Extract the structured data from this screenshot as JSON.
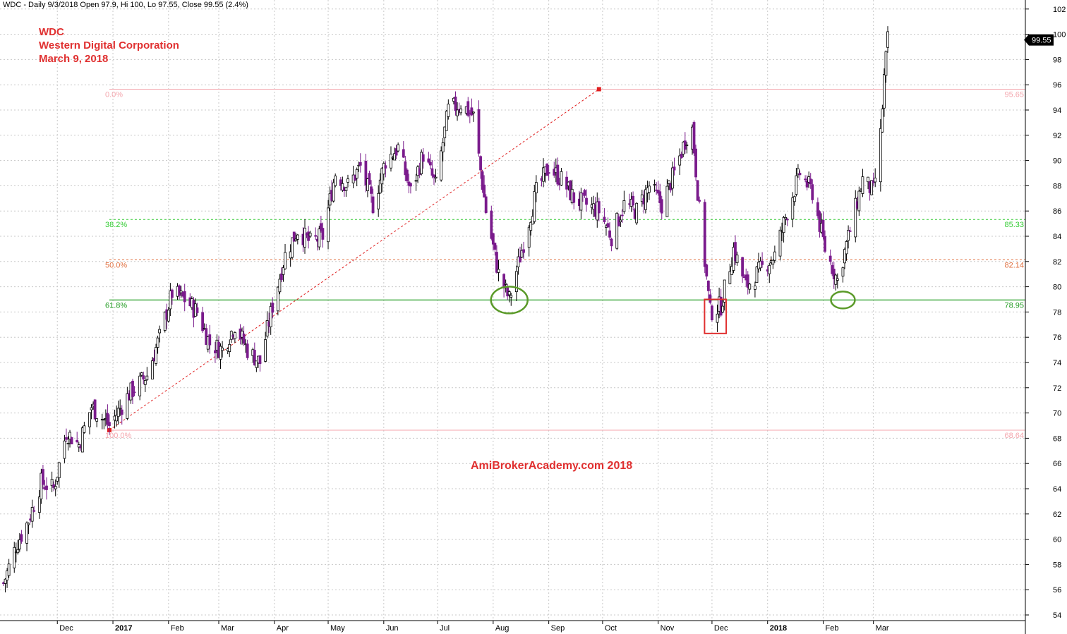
{
  "header": {
    "info": "WDC - Daily 9/3/2018 Open 97.9, Hi 100, Lo 97.55, Close 99.55 (2.4%)"
  },
  "overlay": {
    "ticker": "WDC",
    "company": "Western Digital Corporation",
    "date": "March 9, 2018",
    "watermark": "AmiBrokerAcademy.com  2018"
  },
  "colors": {
    "up_candle": "#000000",
    "down_candle": "#7a1b8c",
    "fib_0": "#f4a6ad",
    "fib_382": "#33cc33",
    "fib_50": "#e07040",
    "fib_618": "#1f9a1f",
    "trendline": "#e02020",
    "circle": "#5a9a28",
    "box": "#e03030",
    "label_text": "#e03030"
  },
  "chart_data": {
    "type": "candlestick",
    "y_axis_position": "right",
    "ylim": [
      53,
      103
    ],
    "yticks": [
      54,
      56,
      58,
      60,
      62,
      64,
      66,
      68,
      70,
      72,
      74,
      76,
      78,
      80,
      82,
      84,
      86,
      88,
      90,
      92,
      94,
      96,
      98,
      100,
      102
    ],
    "grid": true,
    "x_tick_labels": [
      {
        "label": "Dec",
        "bold": false
      },
      {
        "label": "2017",
        "bold": true
      },
      {
        "label": "Feb",
        "bold": false
      },
      {
        "label": "Mar",
        "bold": false
      },
      {
        "label": "Apr",
        "bold": false
      },
      {
        "label": "May",
        "bold": false
      },
      {
        "label": "Jun",
        "bold": false
      },
      {
        "label": "Jul",
        "bold": false
      },
      {
        "label": "Aug",
        "bold": false
      },
      {
        "label": "Sep",
        "bold": false
      },
      {
        "label": "Oct",
        "bold": false
      },
      {
        "label": "Nov",
        "bold": false
      },
      {
        "label": "Dec",
        "bold": false
      },
      {
        "label": "2018",
        "bold": true
      },
      {
        "label": "Feb",
        "bold": false
      },
      {
        "label": "Mar",
        "bold": false
      }
    ],
    "last_price_label": "99.55",
    "last_price": 99.55,
    "fibonacci": [
      {
        "level": 95.65,
        "pct": "0.0%",
        "value": "95.65",
        "style": "solid",
        "color_key": "fib_0"
      },
      {
        "level": 85.33,
        "pct": "38.2%",
        "value": "85.33",
        "style": "dashed",
        "color_key": "fib_382"
      },
      {
        "level": 82.14,
        "pct": "50.0%",
        "value": "82.14",
        "style": "dashed",
        "color_key": "fib_50"
      },
      {
        "level": 78.95,
        "pct": "61.8%",
        "value": "78.95",
        "style": "solid",
        "color_key": "fib_618"
      },
      {
        "level": 68.64,
        "pct": "100.0%",
        "value": "68.64",
        "style": "solid",
        "color_key": "fib_0"
      }
    ],
    "trendline": {
      "from": {
        "date": "2016-12-30",
        "price": 68.64
      },
      "to": {
        "date": "2017-09-29",
        "price": 95.65
      }
    },
    "price_path": [
      {
        "date": "2016-11-01",
        "price": 56.5
      },
      {
        "date": "2016-11-08",
        "price": 59.5
      },
      {
        "date": "2016-11-15",
        "price": 61.5
      },
      {
        "date": "2016-11-22",
        "price": 64.5
      },
      {
        "date": "2016-11-29",
        "price": 64.0
      },
      {
        "date": "2016-12-06",
        "price": 68.5
      },
      {
        "date": "2016-12-13",
        "price": 67.5
      },
      {
        "date": "2016-12-20",
        "price": 70.5
      },
      {
        "date": "2016-12-30",
        "price": 69.0
      },
      {
        "date": "2017-01-10",
        "price": 71.5
      },
      {
        "date": "2017-01-20",
        "price": 73.0
      },
      {
        "date": "2017-01-27",
        "price": 76.0
      },
      {
        "date": "2017-02-03",
        "price": 79.5
      },
      {
        "date": "2017-02-10",
        "price": 79.0
      },
      {
        "date": "2017-02-17",
        "price": 78.0
      },
      {
        "date": "2017-02-24",
        "price": 75.5
      },
      {
        "date": "2017-03-03",
        "price": 75.0
      },
      {
        "date": "2017-03-10",
        "price": 77.0
      },
      {
        "date": "2017-03-17",
        "price": 75.0
      },
      {
        "date": "2017-03-24",
        "price": 74.0
      },
      {
        "date": "2017-03-31",
        "price": 78.5
      },
      {
        "date": "2017-04-07",
        "price": 82.5
      },
      {
        "date": "2017-04-14",
        "price": 84.5
      },
      {
        "date": "2017-04-21",
        "price": 83.5
      },
      {
        "date": "2017-04-28",
        "price": 84.0
      },
      {
        "date": "2017-05-05",
        "price": 89.0
      },
      {
        "date": "2017-05-12",
        "price": 88.0
      },
      {
        "date": "2017-05-19",
        "price": 89.5
      },
      {
        "date": "2017-05-26",
        "price": 86.5
      },
      {
        "date": "2017-06-02",
        "price": 90.0
      },
      {
        "date": "2017-06-09",
        "price": 91.0
      },
      {
        "date": "2017-06-16",
        "price": 87.5
      },
      {
        "date": "2017-06-23",
        "price": 90.5
      },
      {
        "date": "2017-06-30",
        "price": 88.0
      },
      {
        "date": "2017-07-07",
        "price": 94.0
      },
      {
        "date": "2017-07-14",
        "price": 94.5
      },
      {
        "date": "2017-07-21",
        "price": 93.5
      },
      {
        "date": "2017-07-28",
        "price": 86.0
      },
      {
        "date": "2017-08-04",
        "price": 81.0
      },
      {
        "date": "2017-08-10",
        "price": 79.0
      },
      {
        "date": "2017-08-18",
        "price": 83.5
      },
      {
        "date": "2017-08-25",
        "price": 87.5
      },
      {
        "date": "2017-09-01",
        "price": 89.5
      },
      {
        "date": "2017-09-08",
        "price": 88.5
      },
      {
        "date": "2017-09-15",
        "price": 87.0
      },
      {
        "date": "2017-09-22",
        "price": 86.5
      },
      {
        "date": "2017-09-29",
        "price": 86.0
      },
      {
        "date": "2017-10-06",
        "price": 84.0
      },
      {
        "date": "2017-10-13",
        "price": 86.5
      },
      {
        "date": "2017-10-20",
        "price": 86.0
      },
      {
        "date": "2017-10-27",
        "price": 88.0
      },
      {
        "date": "2017-11-03",
        "price": 86.5
      },
      {
        "date": "2017-11-10",
        "price": 89.0
      },
      {
        "date": "2017-11-17",
        "price": 92.0
      },
      {
        "date": "2017-11-20",
        "price": 92.5
      },
      {
        "date": "2017-11-24",
        "price": 86.0
      },
      {
        "date": "2017-11-30",
        "price": 78.0
      },
      {
        "date": "2017-12-06",
        "price": 78.5
      },
      {
        "date": "2017-12-13",
        "price": 83.0
      },
      {
        "date": "2017-12-20",
        "price": 80.0
      },
      {
        "date": "2017-12-29",
        "price": 81.5
      },
      {
        "date": "2018-01-05",
        "price": 82.5
      },
      {
        "date": "2018-01-12",
        "price": 86.0
      },
      {
        "date": "2018-01-19",
        "price": 89.0
      },
      {
        "date": "2018-01-26",
        "price": 87.5
      },
      {
        "date": "2018-02-02",
        "price": 83.0
      },
      {
        "date": "2018-02-09",
        "price": 80.5
      },
      {
        "date": "2018-02-16",
        "price": 84.5
      },
      {
        "date": "2018-02-23",
        "price": 88.5
      },
      {
        "date": "2018-03-01",
        "price": 87.5
      },
      {
        "date": "2018-03-05",
        "price": 92.0
      },
      {
        "date": "2018-03-07",
        "price": 96.5
      },
      {
        "date": "2018-03-09",
        "price": 99.55
      }
    ],
    "annotations": [
      {
        "type": "ellipse",
        "date": "2017-08-10",
        "price": 78.95,
        "color_key": "circle"
      },
      {
        "type": "rect",
        "date_from": "2017-11-30",
        "date_to": "2017-12-05",
        "price_low": 76.3,
        "price_high": 79.0,
        "color_key": "box"
      },
      {
        "type": "ellipse",
        "date": "2018-02-12",
        "price": 78.95,
        "color_key": "circle"
      }
    ]
  }
}
